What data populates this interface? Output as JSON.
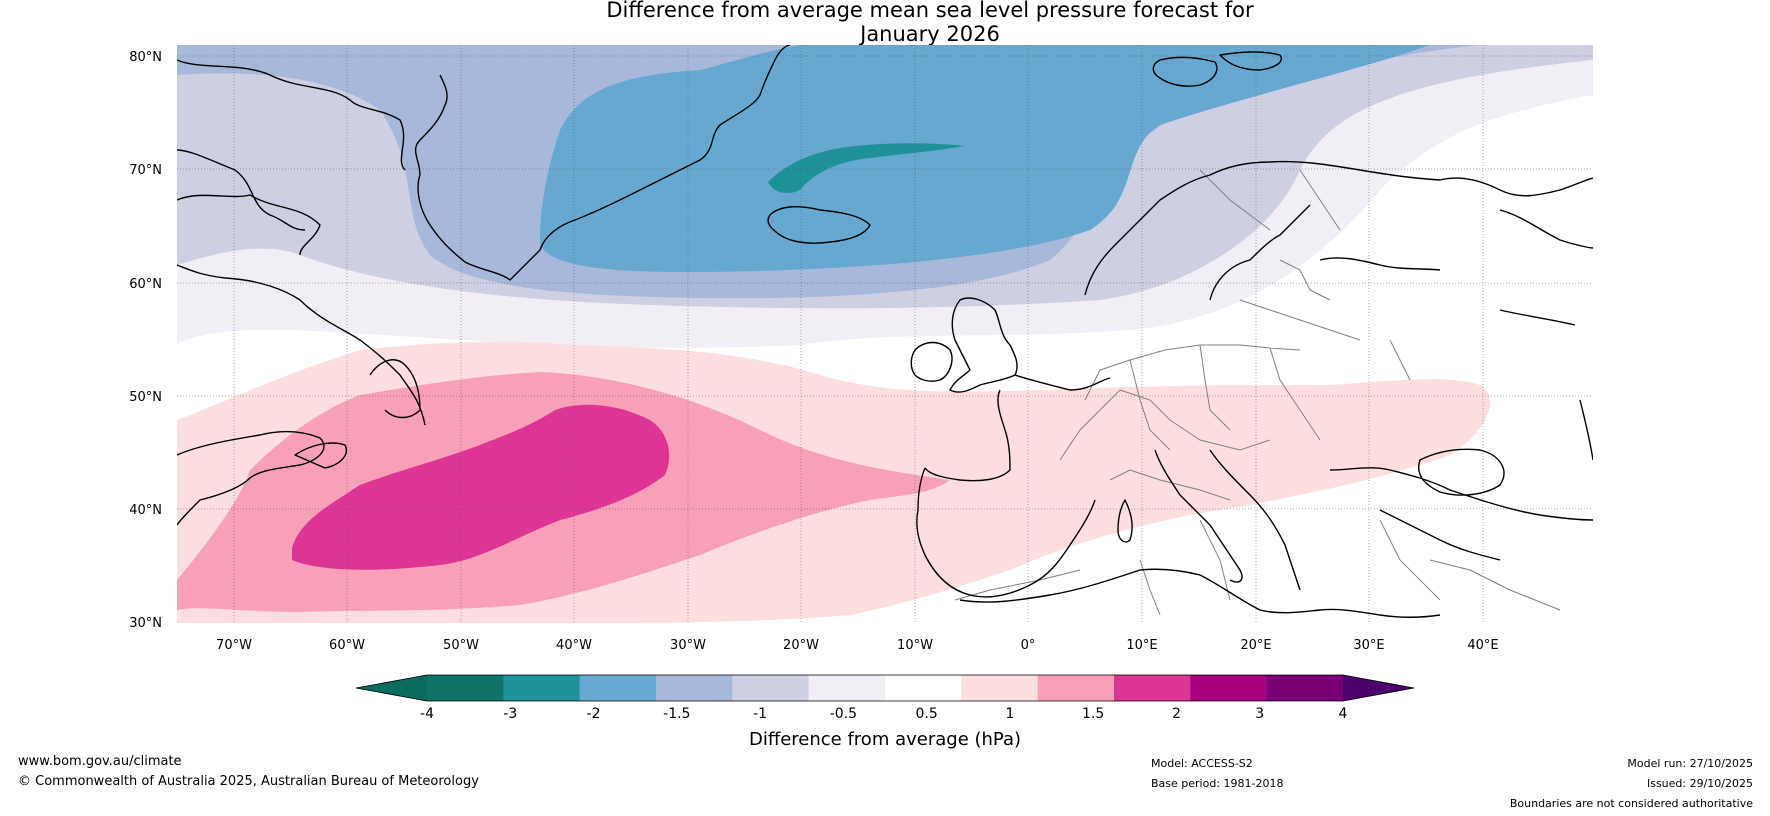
{
  "title": {
    "line1": "Difference from average mean sea level pressure forecast for",
    "line2": "January 2026"
  },
  "axes": {
    "lat_labels": [
      "80°N",
      "70°N",
      "60°N",
      "50°N",
      "40°N",
      "30°N"
    ],
    "lon_labels": [
      "70°W",
      "60°W",
      "50°W",
      "40°W",
      "30°W",
      "20°W",
      "10°W",
      "0°",
      "10°E",
      "20°E",
      "30°E",
      "40°E"
    ]
  },
  "colorbar": {
    "tick_labels": [
      "-4",
      "-3",
      "-2",
      "-1.5",
      "-1",
      "-0.5",
      "0.5",
      "1",
      "1.5",
      "2",
      "3",
      "4"
    ],
    "label": "Difference from average (hPa)",
    "colors": [
      "#0f7468",
      "#1f9299",
      "#66a8d0",
      "#a8b8da",
      "#cfcfe4",
      "#f2eef5",
      "#ffffff",
      "#fddede",
      "#f8a0b8",
      "#dc3596",
      "#a8007c",
      "#7a0078"
    ],
    "under_color": "#0a6b5e",
    "over_color": "#4a0068"
  },
  "footer": {
    "website": "www.bom.gov.au/climate",
    "copyright": "© Commonwealth of Australia 2025, Australian Bureau of Meteorology",
    "model": "Model: ACCESS-S2",
    "base_period": "Base period: 1981-2018",
    "model_run": "Model run: 27/10/2025",
    "issued": "Issued: 29/10/2025",
    "disclaimer": "Boundaries are not considered authoritative"
  }
}
